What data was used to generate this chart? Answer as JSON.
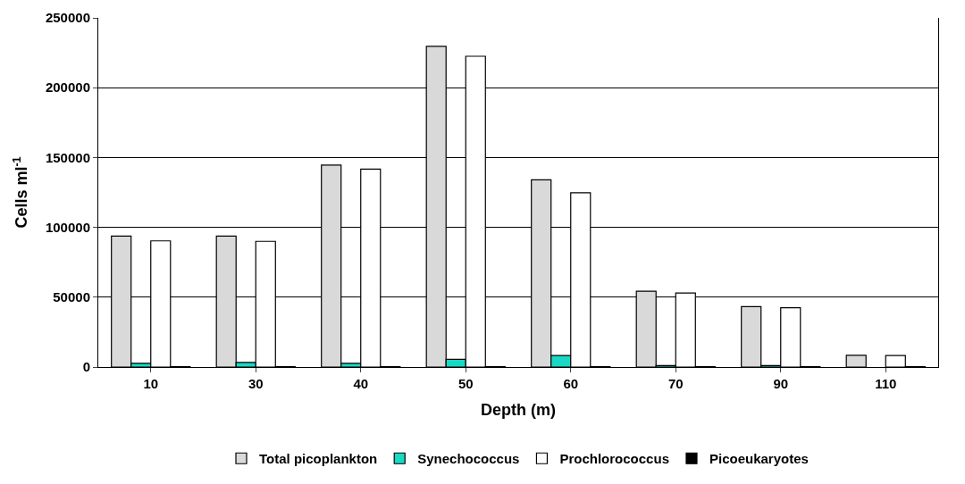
{
  "chart_data": {
    "type": "bar",
    "xlabel": "Depth (m)",
    "ylabel": "Cells ml$^{-1}$",
    "categories": [
      "10",
      "30",
      "40",
      "50",
      "60",
      "70",
      "90",
      "110"
    ],
    "series": [
      {
        "name": "Total picoplankton",
        "color": "#d9d9d9",
        "values": [
          93800,
          93800,
          144600,
          229600,
          134000,
          54300,
          43300,
          8400
        ]
      },
      {
        "name": "Synechococcus",
        "color": "#19d9c5",
        "values": [
          2700,
          3300,
          2700,
          5500,
          8200,
          1100,
          1000,
          null
        ]
      },
      {
        "name": "Prochlorococcus",
        "color": "#ffffff",
        "values": [
          90300,
          90000,
          141700,
          222500,
          124700,
          53000,
          42400,
          8200
        ]
      },
      {
        "name": "Picoeukaryotes",
        "color": "#000000",
        "values": [
          300,
          300,
          300,
          300,
          300,
          300,
          300,
          300
        ]
      }
    ],
    "ylim": [
      0,
      250000
    ],
    "yticks": [
      0,
      50000,
      100000,
      150000,
      200000,
      250000
    ],
    "grid": "y",
    "legend": "bottom"
  }
}
